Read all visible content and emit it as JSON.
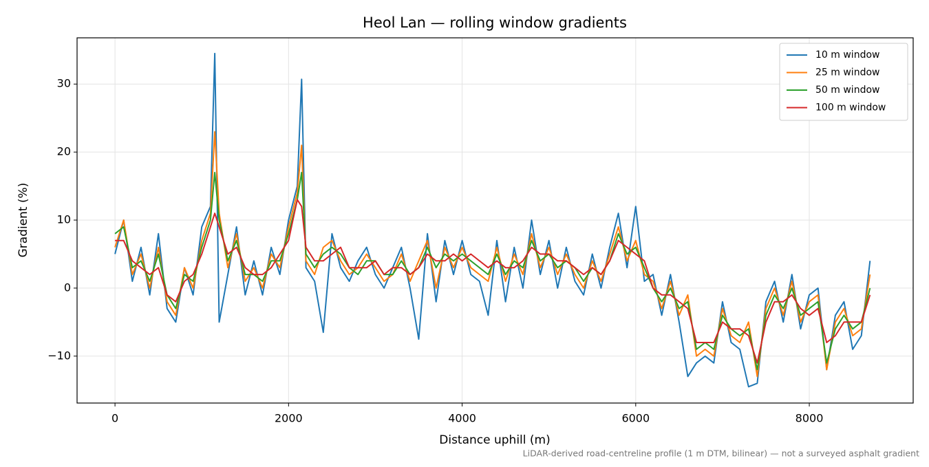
{
  "chart_data": {
    "type": "line",
    "title": "Heol Lan — rolling window gradients",
    "xlabel": "Distance uphill (m)",
    "ylabel": "Gradient (%)",
    "footnote": "LiDAR-derived road-centreline profile (1 m DTM, bilinear) — not a surveyed asphalt gradient",
    "x": [
      0,
      100,
      200,
      300,
      400,
      500,
      600,
      700,
      800,
      900,
      1000,
      1100,
      1150,
      1200,
      1300,
      1400,
      1500,
      1600,
      1700,
      1800,
      1900,
      2000,
      2100,
      2150,
      2200,
      2300,
      2400,
      2500,
      2600,
      2700,
      2800,
      2900,
      3000,
      3100,
      3200,
      3300,
      3400,
      3500,
      3600,
      3700,
      3800,
      3900,
      4000,
      4100,
      4200,
      4300,
      4400,
      4500,
      4600,
      4700,
      4800,
      4900,
      5000,
      5100,
      5200,
      5300,
      5400,
      5500,
      5600,
      5700,
      5800,
      5900,
      6000,
      6100,
      6200,
      6300,
      6400,
      6500,
      6600,
      6700,
      6800,
      6900,
      7000,
      7100,
      7200,
      7300,
      7400,
      7500,
      7600,
      7700,
      7800,
      7900,
      8000,
      8100,
      8200,
      8300,
      8400,
      8500,
      8600,
      8700
    ],
    "series": [
      {
        "name": "10 m window",
        "color": "#1f77b4",
        "values": [
          5,
          10,
          1,
          6,
          -1,
          8,
          -3,
          -5,
          3,
          -1,
          9,
          12,
          34.5,
          -5,
          2,
          9,
          -1,
          4,
          -1,
          6,
          2,
          10,
          15,
          30.7,
          3,
          1,
          -6.5,
          8,
          3,
          1,
          4,
          6,
          2,
          0,
          3,
          6,
          0,
          -7.5,
          8,
          -2,
          7,
          2,
          7,
          2,
          1,
          -4,
          7,
          -2,
          6,
          0,
          10,
          2,
          7,
          0,
          6,
          1,
          -1,
          5,
          0,
          6,
          11,
          3,
          12,
          1,
          2,
          -4,
          2,
          -5,
          -13,
          -11,
          -10,
          -11,
          -2,
          -8,
          -9,
          -14.5,
          -14,
          -2,
          1,
          -5,
          2,
          -6,
          -1,
          0,
          -12,
          -4,
          -2,
          -9,
          -7,
          4
        ]
      },
      {
        "name": "25 m window",
        "color": "#ff7f0e",
        "values": [
          6,
          10,
          2,
          5,
          0,
          6,
          -2,
          -4,
          3,
          0,
          7,
          11,
          23,
          11,
          3,
          8,
          1,
          3,
          0,
          5,
          3,
          9,
          14,
          21,
          4,
          2,
          6,
          7,
          4,
          2,
          3,
          5,
          3,
          1,
          2,
          5,
          1,
          4,
          7,
          0,
          6,
          3,
          6,
          3,
          2,
          1,
          6,
          1,
          5,
          2,
          8,
          3,
          6,
          2,
          5,
          2,
          0,
          4,
          1,
          5,
          9,
          4,
          7,
          2,
          1,
          -3,
          1,
          -4,
          -1,
          -10,
          -9,
          -10,
          -3,
          -7,
          -8,
          -5,
          -13,
          -3,
          0,
          -4,
          1,
          -5,
          -2,
          -1,
          -12,
          -5,
          -3,
          -7,
          -6,
          2
        ]
      },
      {
        "name": "50 m window",
        "color": "#2ca02c",
        "values": [
          8,
          9,
          3,
          4,
          1,
          5,
          -1,
          -3,
          2,
          1,
          6,
          10,
          17,
          10,
          4,
          7,
          2,
          2,
          1,
          4,
          4,
          8,
          13,
          17,
          5,
          3,
          5,
          6,
          5,
          3,
          2,
          4,
          4,
          2,
          2,
          4,
          2,
          3,
          6,
          3,
          5,
          4,
          5,
          4,
          3,
          2,
          5,
          2,
          4,
          3,
          7,
          4,
          5,
          3,
          4,
          3,
          1,
          3,
          2,
          4,
          8,
          5,
          6,
          3,
          0,
          -2,
          0,
          -3,
          -2,
          -9,
          -8,
          -9,
          -4,
          -6,
          -7,
          -6,
          -12,
          -4,
          -1,
          -3,
          0,
          -4,
          -3,
          -2,
          -11,
          -6,
          -4,
          -6,
          -5,
          0
        ]
      },
      {
        "name": "100 m window",
        "color": "#d62728",
        "values": [
          7,
          7,
          4,
          3,
          2,
          3,
          -1,
          -2,
          1,
          2,
          5,
          9,
          11,
          9,
          5,
          6,
          3,
          2,
          2,
          3,
          5,
          7,
          13,
          12,
          6,
          4,
          4,
          5,
          6,
          3,
          3,
          3,
          4,
          2,
          3,
          3,
          2,
          3,
          5,
          4,
          4,
          5,
          4,
          5,
          4,
          3,
          4,
          3,
          3,
          4,
          6,
          5,
          5,
          4,
          4,
          3,
          2,
          3,
          2,
          4,
          7,
          6,
          5,
          4,
          0,
          -1,
          -1,
          -2,
          -3,
          -8,
          -8,
          -8,
          -5,
          -6,
          -6,
          -7,
          -11,
          -5,
          -2,
          -2,
          -1,
          -3,
          -4,
          -3,
          -8,
          -7,
          -5,
          -5,
          -5,
          -1
        ]
      }
    ],
    "xlim": [
      -437,
      9197
    ],
    "ylim": [
      -16.9,
      36.8
    ],
    "xticks": [
      0,
      2000,
      4000,
      6000,
      8000
    ],
    "yticks": [
      {
        "value": -10,
        "label": "−10"
      },
      0,
      10,
      20,
      30
    ],
    "grid": true,
    "legend": "upper right"
  }
}
